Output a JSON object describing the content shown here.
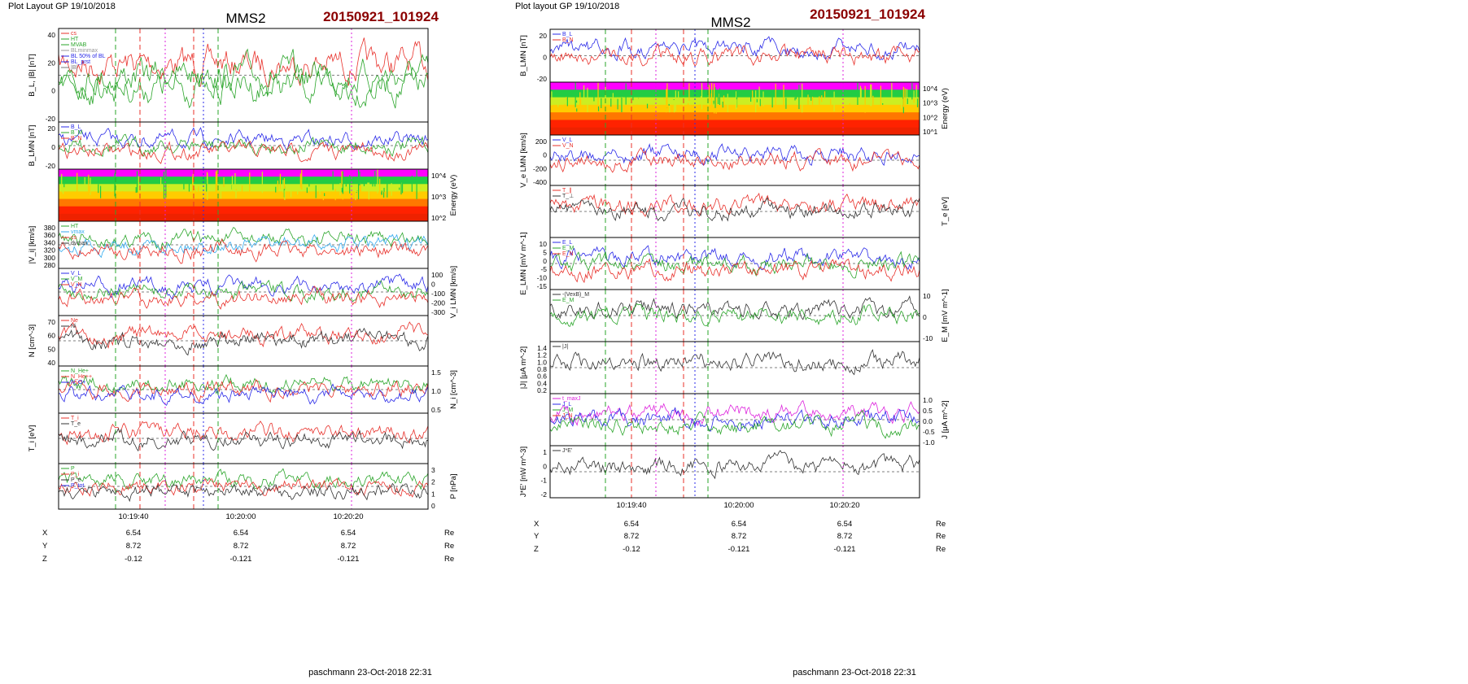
{
  "left": {
    "header": "Plot Layout GP 19/10/2018",
    "spacecraft": "MMS2",
    "event_id": "20150921_101924",
    "footer": "paschmann 23-Oct-2018 22:31",
    "time_ticks": [
      "10:19:40",
      "10:20:00",
      "10:20:20"
    ],
    "position": {
      "rows": [
        {
          "label": "X",
          "values": [
            "6.54",
            "6.54",
            "6.54"
          ],
          "unit": "Re"
        },
        {
          "label": "Y",
          "values": [
            "8.72",
            "8.72",
            "8.72"
          ],
          "unit": "Re"
        },
        {
          "label": "Z",
          "values": [
            "-0.12",
            "-0.121",
            "-0.121"
          ],
          "unit": "Re"
        }
      ]
    },
    "panels": [
      {
        "ylabel": "B_L, |B| [nT]",
        "side": "left",
        "ticks": [
          "40",
          "20",
          "0",
          "-20"
        ],
        "legend": [
          {
            "t": "cs",
            "c": "#e8302a"
          },
          {
            "t": "HT",
            "c": "#2aa52a"
          },
          {
            "t": "MVAB",
            "c": "#2aa52a"
          },
          {
            "t": "BLminmax",
            "c": "#999999"
          },
          {
            "t": "BL 50% of BL",
            "c": "#2a2ae8"
          },
          {
            "t": "BL_prst",
            "c": "#2a2ae8"
          },
          {
            "t": "|B|",
            "c": "#777777"
          }
        ]
      },
      {
        "ylabel": "B_LMN [nT]",
        "side": "left",
        "ticks": [
          "20",
          "0",
          "-20"
        ],
        "legend": [
          {
            "t": "B_L",
            "c": "#2a2ae8"
          },
          {
            "t": "B_M",
            "c": "#2aa52a"
          },
          {
            "t": "B_N",
            "c": "#e8302a"
          }
        ]
      },
      {
        "ylabel": "Energy (eV)",
        "side": "right",
        "ticks": [
          "10^4",
          "10^3",
          "10^2"
        ],
        "legend": []
      },
      {
        "ylabel": "|V_i| [km/s]",
        "side": "left",
        "ticks": [
          "380",
          "360",
          "340",
          "320",
          "300",
          "280"
        ],
        "legend": [
          {
            "t": "HT",
            "c": "#2aa52a"
          },
          {
            "t": "vmax",
            "c": "#33aaee"
          },
          {
            "t": "cs",
            "c": "#e8302a"
          },
          {
            "t": "dvmax",
            "c": "#333333"
          }
        ]
      },
      {
        "ylabel": "V_i LMN [km/s]",
        "side": "right",
        "ticks": [
          "100",
          "0",
          "-100",
          "-200",
          "-300"
        ],
        "legend": [
          {
            "t": "V_L",
            "c": "#2a2ae8"
          },
          {
            "t": "V_M",
            "c": "#2aa52a"
          },
          {
            "t": "V_N",
            "c": "#e8302a"
          }
        ]
      },
      {
        "ylabel": "N [cm^-3]",
        "side": "left",
        "ticks": [
          "70",
          "60",
          "50",
          "40"
        ],
        "legend": [
          {
            "t": "Ne",
            "c": "#e8302a"
          },
          {
            "t": "Ni",
            "c": "#333333"
          }
        ]
      },
      {
        "ylabel": "N_i [cm^-3]",
        "side": "right",
        "ticks": [
          "1.5",
          "1.0",
          "0.5"
        ],
        "legend": [
          {
            "t": "N_He+",
            "c": "#2aa52a"
          },
          {
            "t": "N_He++",
            "c": "#e8302a"
          },
          {
            "t": "N_O+",
            "c": "#2a2ae8"
          }
        ]
      },
      {
        "ylabel": "T_i [eV]",
        "side": "left",
        "ticks": [],
        "legend": [
          {
            "t": "T_i",
            "c": "#e8302a"
          },
          {
            "t": "T_e",
            "c": "#333333"
          }
        ]
      },
      {
        "ylabel": "P [nPa]",
        "side": "right",
        "ticks": [
          "3",
          "2",
          "1",
          "0"
        ],
        "legend": [
          {
            "t": "P",
            "c": "#2aa52a"
          },
          {
            "t": "P_i",
            "c": "#e8302a"
          },
          {
            "t": "P_e",
            "c": "#333333"
          },
          {
            "t": "P_tot",
            "c": "#2a2ae8"
          }
        ]
      }
    ]
  },
  "right": {
    "header": "Plot layout GP 19/10/2018",
    "spacecraft": "MMS2",
    "event_id": "20150921_101924",
    "footer": "paschmann 23-Oct-2018 22:31",
    "time_ticks": [
      "10:19:40",
      "10:20:00",
      "10:20:20"
    ],
    "position": {
      "rows": [
        {
          "label": "X",
          "values": [
            "6.54",
            "6.54",
            "6.54"
          ],
          "unit": "Re"
        },
        {
          "label": "Y",
          "values": [
            "8.72",
            "8.72",
            "8.72"
          ],
          "unit": "Re"
        },
        {
          "label": "Z",
          "values": [
            "-0.12",
            "-0.121",
            "-0.121"
          ],
          "unit": "Re"
        }
      ]
    },
    "panels": [
      {
        "ylabel": "B_LMN [nT]",
        "side": "left",
        "ticks": [
          "20",
          "0",
          "-20"
        ],
        "legend": [
          {
            "t": "B_L",
            "c": "#2a2ae8"
          },
          {
            "t": "B_N",
            "c": "#e8302a"
          }
        ]
      },
      {
        "ylabel": "Energy (eV)",
        "side": "right",
        "ticks": [
          "10^4",
          "10^3",
          "10^2",
          "10^1"
        ],
        "legend": []
      },
      {
        "ylabel": "V_e LMN [km/s]",
        "side": "left",
        "ticks": [
          "200",
          "0",
          "-200",
          "-400"
        ],
        "legend": [
          {
            "t": "V_L",
            "c": "#2a2ae8"
          },
          {
            "t": "V_N",
            "c": "#e8302a"
          }
        ]
      },
      {
        "ylabel": "T_e [eV]",
        "side": "right",
        "ticks": [],
        "legend": [
          {
            "t": "T_∥",
            "c": "#e8302a"
          },
          {
            "t": "T_⊥",
            "c": "#333333"
          }
        ]
      },
      {
        "ylabel": "E_LMN [mV m^-1]",
        "side": "left",
        "ticks": [
          "10",
          "5",
          "0",
          "-5",
          "-10",
          "-15"
        ],
        "legend": [
          {
            "t": "E_L",
            "c": "#2a2ae8"
          },
          {
            "t": "E_M",
            "c": "#2aa52a"
          },
          {
            "t": "E_N",
            "c": "#e8302a"
          }
        ]
      },
      {
        "ylabel": "E_M [mV m^-1]",
        "side": "right",
        "ticks": [
          "10",
          "0",
          "-10"
        ],
        "legend": [
          {
            "t": "-(VexB)_M",
            "c": "#333333"
          },
          {
            "t": "E_M",
            "c": "#2aa52a"
          }
        ]
      },
      {
        "ylabel": "|J| [μA m^-2]",
        "side": "left",
        "ticks": [
          "1.4",
          "1.2",
          "1.0",
          "0.8",
          "0.6",
          "0.4",
          "0.2"
        ],
        "legend": [
          {
            "t": "|J|",
            "c": "#333333"
          }
        ]
      },
      {
        "ylabel": "J [μA m^-2]",
        "side": "right",
        "ticks": [
          "1.0",
          "0.5",
          "0.0",
          "-0.5",
          "-1.0"
        ],
        "legend": [
          {
            "t": "t_maxJ",
            "c": "#dd22dd"
          },
          {
            "t": "J_L",
            "c": "#2a2ae8"
          },
          {
            "t": "J_M",
            "c": "#2aa52a"
          },
          {
            "t": "J_N",
            "c": "#e8302a"
          }
        ]
      },
      {
        "ylabel": "J*E' [nW m^-3]",
        "side": "left",
        "ticks": [
          "1",
          "0",
          "-1",
          "-2"
        ],
        "legend": [
          {
            "t": "J*E'",
            "c": "#333333"
          }
        ]
      }
    ]
  },
  "colors": {
    "title_red": "#8b0000",
    "blue": "#2a2ae8",
    "red": "#e8302a",
    "green": "#2aa52a",
    "magenta": "#dd22dd",
    "gray": "#888888"
  }
}
